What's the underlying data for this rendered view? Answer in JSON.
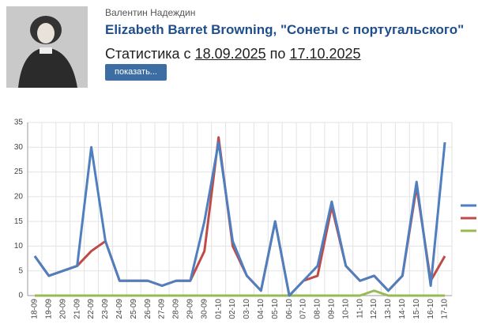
{
  "header": {
    "author": "Валентин Надеждин",
    "title": "Elizabeth Barret Browning, \"Сонеты с португальского\"",
    "stats_prefix": "Статистика с",
    "date_from": "18.09.2025",
    "between": "по",
    "date_to": "17.10.2025",
    "button": "показать..."
  },
  "chart_data": {
    "type": "line",
    "categories": [
      "18-09",
      "19-09",
      "20-09",
      "21-09",
      "22-09",
      "23-09",
      "24-09",
      "25-09",
      "26-09",
      "27-09",
      "28-09",
      "29-09",
      "30-09",
      "01-10",
      "02-10",
      "03-10",
      "04-10",
      "05-10",
      "06-10",
      "07-10",
      "08-10",
      "09-10",
      "10-10",
      "11-10",
      "12-10",
      "13-10",
      "14-10",
      "15-10",
      "16-10",
      "17-10"
    ],
    "series": [
      {
        "color": "#4f7fbf",
        "values": [
          8,
          4,
          5,
          6,
          30,
          11,
          3,
          3,
          3,
          2,
          3,
          3,
          15,
          31,
          11,
          4,
          1,
          15,
          0,
          3,
          6,
          19,
          6,
          3,
          4,
          1,
          4,
          23,
          2,
          31
        ]
      },
      {
        "color": "#bf4b48",
        "values": [
          8,
          4,
          5,
          6,
          9,
          11,
          3,
          3,
          3,
          2,
          3,
          3,
          9,
          32,
          10,
          4,
          1,
          15,
          0,
          3,
          4,
          18,
          6,
          3,
          4,
          1,
          4,
          22,
          3,
          8
        ]
      },
      {
        "color": "#98b954",
        "values": [
          0,
          0,
          0,
          0,
          0,
          0,
          0,
          0,
          0,
          0,
          0,
          0,
          0,
          0,
          0,
          0,
          0,
          0,
          0,
          0,
          0,
          0,
          0,
          0,
          1,
          0,
          0,
          0,
          0,
          0
        ]
      }
    ],
    "ylim": [
      0,
      35
    ],
    "yticks": [
      0,
      5,
      10,
      15,
      20,
      25,
      30,
      35
    ],
    "grid": true
  }
}
